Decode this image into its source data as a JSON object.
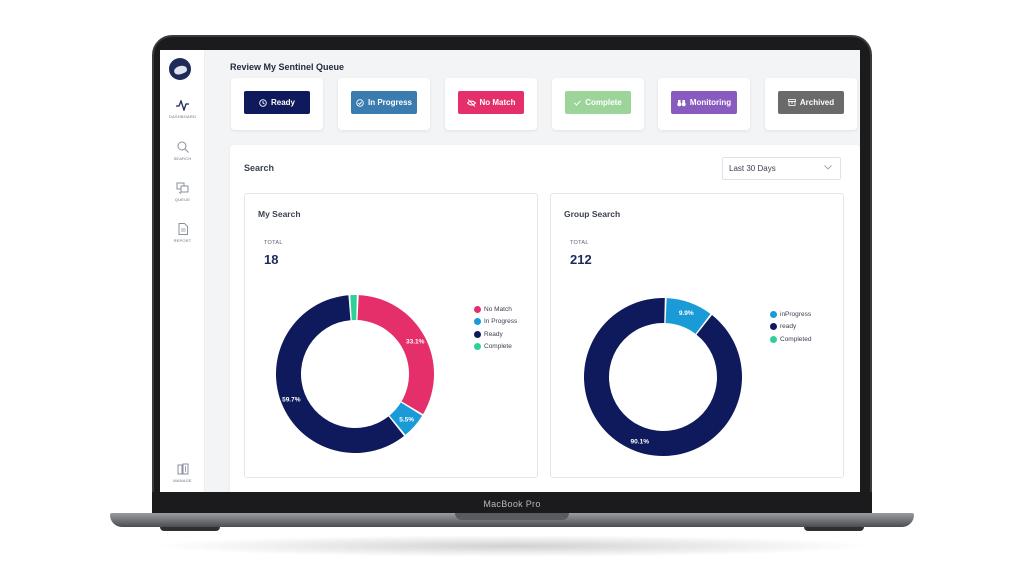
{
  "device": {
    "model_label": "MacBook Pro"
  },
  "sidebar": {
    "items": [
      {
        "label": "DASHBOARD",
        "icon": "activity-icon"
      },
      {
        "label": "SEARCH",
        "icon": "search-icon"
      },
      {
        "label": "QUEUE",
        "icon": "queue-icon"
      },
      {
        "label": "REPORT",
        "icon": "report-icon"
      },
      {
        "label": "MANAGE",
        "icon": "manage-icon"
      }
    ]
  },
  "page": {
    "title": "Review My Sentinel Queue"
  },
  "status_buttons": [
    {
      "label": "Ready",
      "color": "#0e1a5b",
      "icon": "clock-icon"
    },
    {
      "label": "In Progress",
      "color": "#3a7bb0",
      "icon": "check-circle-icon"
    },
    {
      "label": "No Match",
      "color": "#e42f6a",
      "icon": "eye-off-icon"
    },
    {
      "label": "Complete",
      "color": "#9dd49a",
      "icon": "check-icon"
    },
    {
      "label": "Monitoring",
      "color": "#8a5bbf",
      "icon": "binoculars-icon"
    },
    {
      "label": "Archived",
      "color": "#6a6a6a",
      "icon": "archive-icon"
    }
  ],
  "search_panel": {
    "title": "Search",
    "date_range": {
      "selected": "Last 30 Days"
    }
  },
  "my_search": {
    "title": "My Search",
    "total_label": "TOTAL",
    "total_value": "18",
    "legend": [
      {
        "label": "No Match",
        "color": "#e42f6a"
      },
      {
        "label": "In Progress",
        "color": "#1a9ad6"
      },
      {
        "label": "Ready",
        "color": "#0e1a5b"
      },
      {
        "label": "Complete",
        "color": "#2ed19a"
      }
    ]
  },
  "group_search": {
    "title": "Group Search",
    "total_label": "TOTAL",
    "total_value": "212",
    "legend": [
      {
        "label": "inProgress",
        "color": "#1a9ad6"
      },
      {
        "label": "ready",
        "color": "#0e1a5b"
      },
      {
        "label": "Completed",
        "color": "#2ed19a"
      }
    ]
  },
  "chart_data": [
    {
      "type": "pie",
      "title": "My Search",
      "categories": [
        "No Match",
        "In Progress",
        "Ready",
        "Complete"
      ],
      "values": [
        33.1,
        5.5,
        59.7,
        1.7
      ],
      "value_labels": [
        "33.1%",
        "5.5%",
        "59.7%",
        ""
      ],
      "colors": [
        "#e42f6a",
        "#1a9ad6",
        "#0e1a5b",
        "#2ed19a"
      ],
      "donut": true
    },
    {
      "type": "pie",
      "title": "Group Search",
      "categories": [
        "inProgress",
        "ready",
        "Completed"
      ],
      "values": [
        9.9,
        90.1,
        0
      ],
      "value_labels": [
        "9.9%",
        "90.1%",
        ""
      ],
      "colors": [
        "#1a9ad6",
        "#0e1a5b",
        "#2ed19a"
      ],
      "donut": true
    }
  ]
}
